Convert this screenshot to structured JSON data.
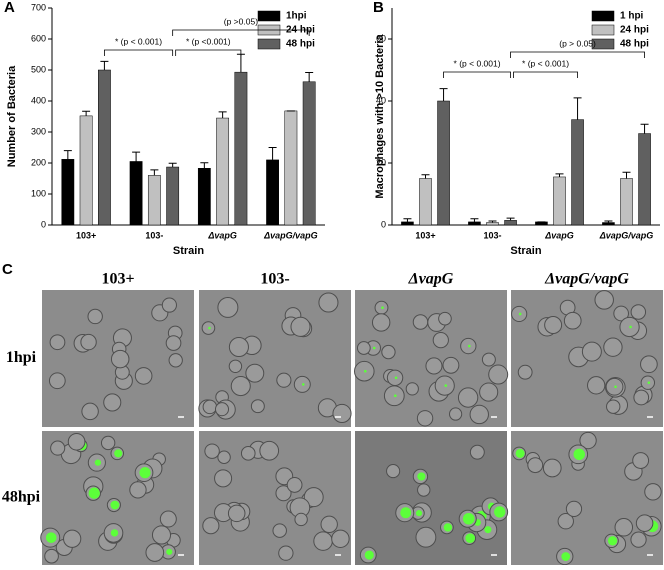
{
  "chart_data": [
    {
      "type": "bar",
      "panel": "A",
      "ylabel": "Number of Bacteria",
      "xlabel": "Strain",
      "categories": [
        "103+",
        "103-",
        "ΔvapG",
        "ΔvapG/vapG"
      ],
      "series": [
        {
          "name": "1hpi",
          "color": "#000000",
          "values": [
            212,
            205,
            183,
            210
          ],
          "errors": [
            28,
            30,
            18,
            40
          ]
        },
        {
          "name": "24 hpi",
          "color": "#c0c0c0",
          "values": [
            352,
            160,
            345,
            368
          ],
          "errors": [
            15,
            18,
            20,
            0
          ]
        },
        {
          "name": "48 hpi",
          "color": "#606060",
          "values": [
            500,
            187,
            493,
            462
          ],
          "errors": [
            28,
            12,
            58,
            30
          ]
        }
      ],
      "ylim": [
        0,
        700
      ],
      "yticks": [
        0,
        100,
        200,
        300,
        400,
        500,
        600,
        700
      ],
      "legend": "upper right",
      "annotations": [
        "(p >0.05)",
        "* (p < 0.001)",
        "* (p <0.001)"
      ]
    },
    {
      "type": "bar",
      "panel": "B",
      "ylabel": "Macrophages with >10 Bacteria",
      "xlabel": "Strain",
      "categories": [
        "103+",
        "103-",
        "ΔvapG",
        "ΔvapG/vapG"
      ],
      "series": [
        {
          "name": "1 hpi",
          "color": "#000000",
          "values": [
            1,
            1,
            1,
            0.8
          ],
          "errors": [
            1,
            1,
            0,
            0.5
          ]
        },
        {
          "name": "24 hpi",
          "color": "#c0c0c0",
          "values": [
            15,
            0.8,
            15.5,
            15
          ],
          "errors": [
            1.2,
            0.5,
            1,
            2
          ]
        },
        {
          "name": "48 hpi",
          "color": "#606060",
          "values": [
            40,
            1.5,
            34,
            29.5
          ],
          "errors": [
            4,
            0.7,
            7,
            3
          ]
        }
      ],
      "ylim": [
        0,
        70
      ],
      "yticks": [
        0,
        20,
        40,
        60
      ],
      "legend": "upper right",
      "annotations": [
        "(p > 0.05)",
        "* (p < 0.001)",
        "* (p < 0.001)"
      ]
    }
  ],
  "micrographs": {
    "panel": "C",
    "columns": [
      "103+",
      "103-",
      "ΔvapG",
      "ΔvapG/vapG"
    ],
    "rows": [
      "1hpi",
      "48hpi"
    ]
  }
}
